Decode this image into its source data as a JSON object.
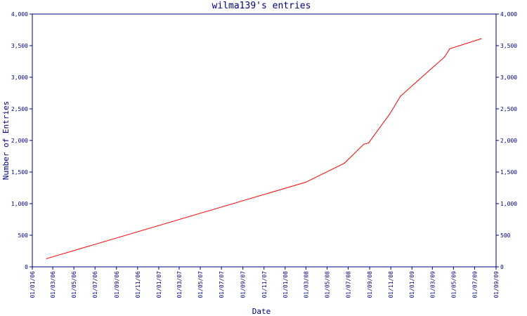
{
  "chart_data": {
    "type": "line",
    "title": "wilma139's entries",
    "xlabel": "Date",
    "ylabel": "Number of Entries",
    "x_ticks": [
      "01/01/06",
      "01/03/06",
      "01/05/06",
      "01/07/06",
      "01/09/06",
      "01/11/06",
      "01/01/07",
      "01/03/07",
      "01/05/07",
      "01/07/07",
      "01/09/07",
      "01/11/07",
      "01/01/08",
      "01/03/08",
      "01/05/08",
      "01/07/08",
      "01/09/08",
      "01/11/08",
      "01/01/09",
      "01/03/09",
      "01/05/09",
      "01/07/09",
      "01/09/09"
    ],
    "y_ticks": [
      0,
      500,
      1000,
      1500,
      2000,
      2500,
      3000,
      3500,
      4000
    ],
    "y_tick_labels": [
      "0",
      "500",
      "1,000",
      "1,500",
      "2,000",
      "2,500",
      "3,000",
      "3,500",
      "4,000"
    ],
    "xlim": [
      "2006-01-01",
      "2009-09-01"
    ],
    "ylim": [
      0,
      4000
    ],
    "grid": false,
    "series": [
      {
        "color": "#ff0000",
        "points": [
          {
            "x": "2006-02-11",
            "y": 130
          },
          {
            "x": "2008-03-01",
            "y": 1340
          },
          {
            "x": "2008-06-20",
            "y": 1640
          },
          {
            "x": "2008-08-15",
            "y": 1940
          },
          {
            "x": "2008-08-29",
            "y": 1960
          },
          {
            "x": "2008-10-29",
            "y": 2420
          },
          {
            "x": "2008-11-29",
            "y": 2700
          },
          {
            "x": "2009-01-19",
            "y": 2950
          },
          {
            "x": "2009-03-01",
            "y": 3150
          },
          {
            "x": "2009-04-05",
            "y": 3320
          },
          {
            "x": "2009-04-20",
            "y": 3450
          },
          {
            "x": "2009-07-20",
            "y": 3610
          }
        ]
      }
    ]
  }
}
